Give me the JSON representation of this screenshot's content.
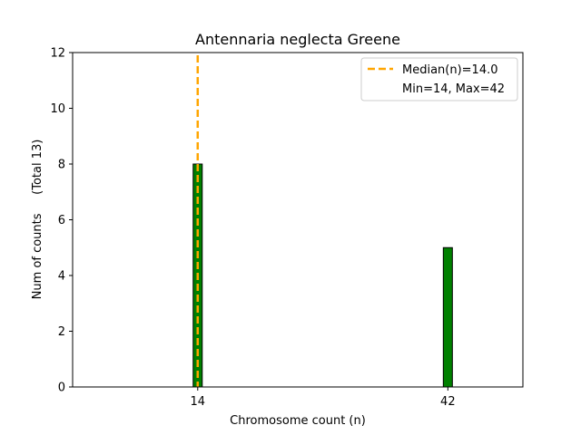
{
  "chart_data": {
    "type": "bar",
    "title": "Antennaria neglecta Greene",
    "xlabel": "Chromosome count (n)",
    "ylabel": "Num of counts     (Total 13)",
    "x_ticks": [
      "14",
      "42"
    ],
    "y_ticks": [
      "0",
      "2",
      "4",
      "6",
      "8",
      "10",
      "12"
    ],
    "ylim": [
      0,
      12
    ],
    "xlim": [
      0,
      50.4
    ],
    "categories": [
      14,
      42
    ],
    "values": [
      8,
      5
    ],
    "bar_color": "#008000",
    "bar_edge_color": "#000000",
    "median": 14.0,
    "median_color": "#ffa500",
    "legend": {
      "position": "top-right",
      "entries": [
        "Median(n)=14.0",
        "Min=14, Max=42"
      ]
    },
    "grid": false
  }
}
